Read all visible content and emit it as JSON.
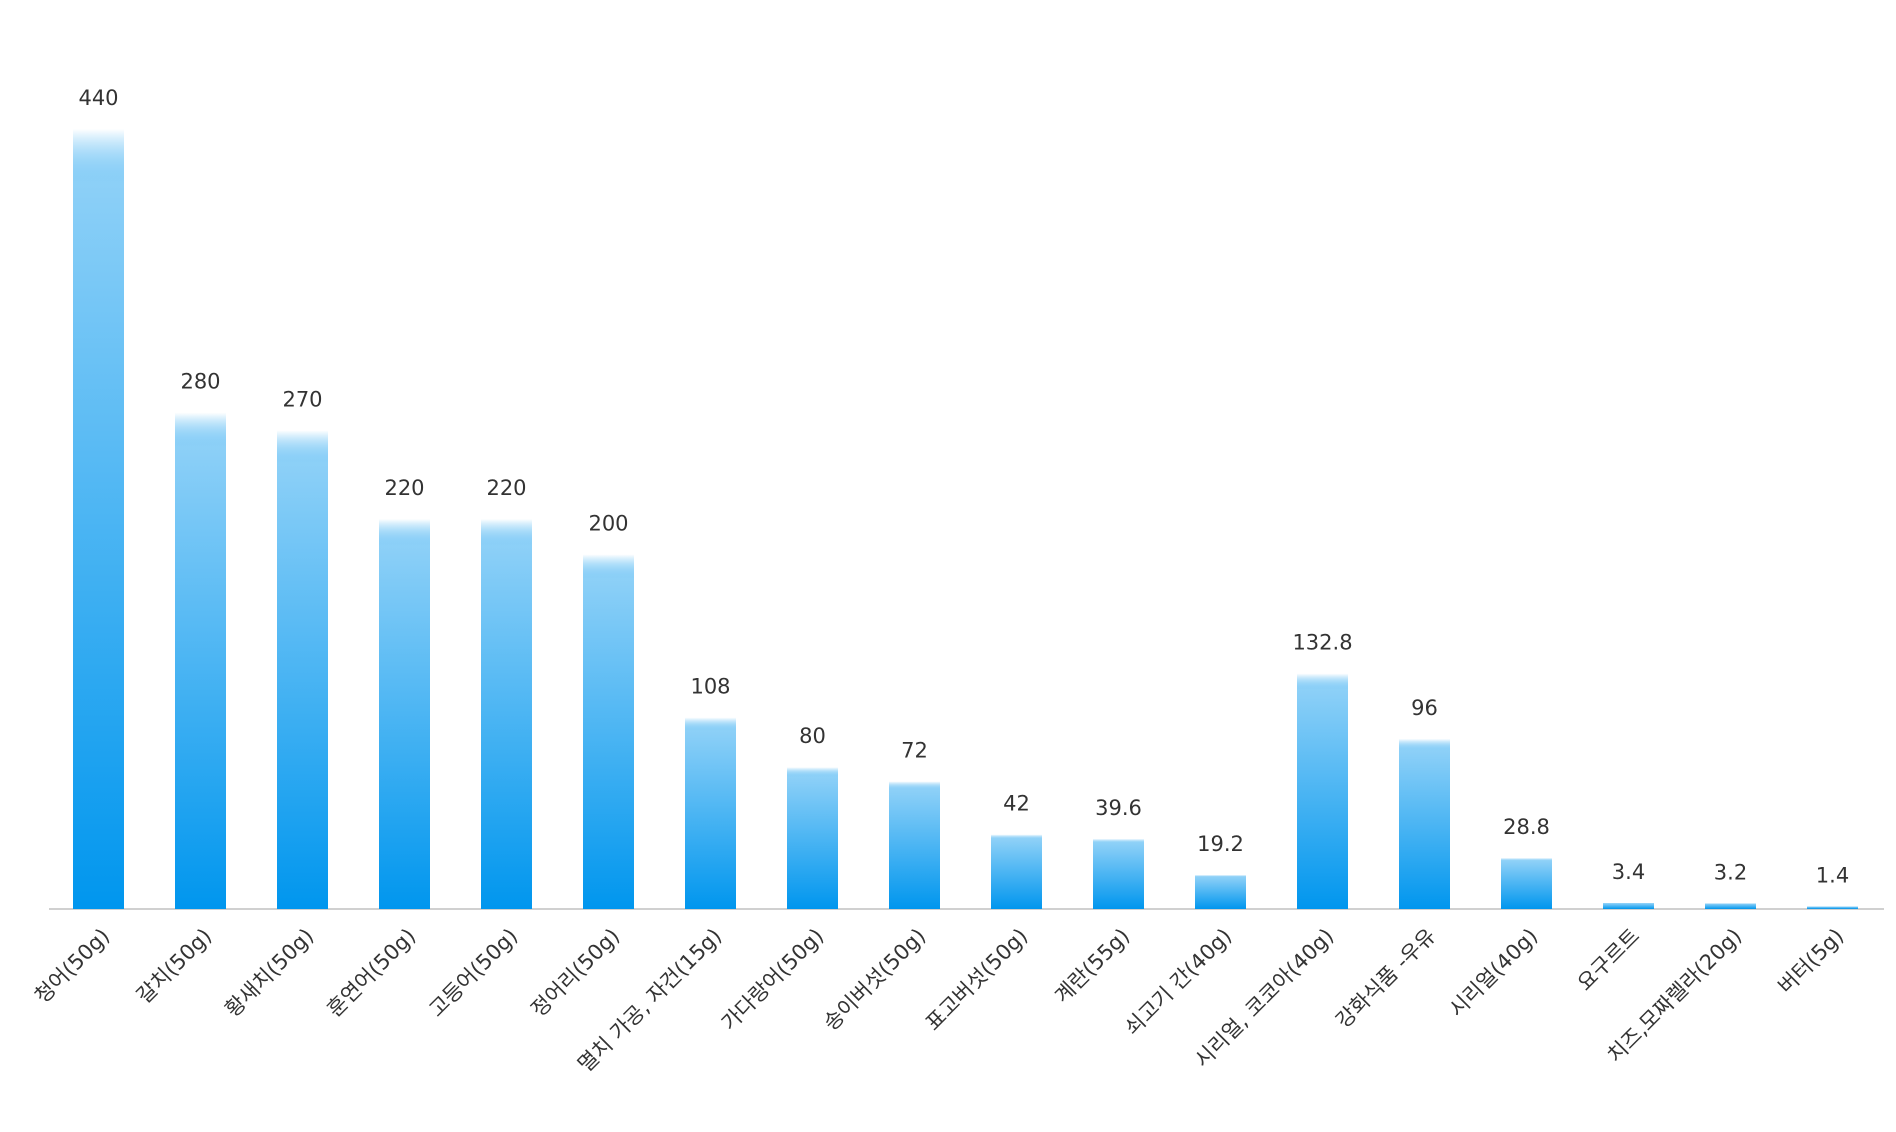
{
  "chart_data": {
    "type": "bar",
    "categories": [
      "청어(50g)",
      "갈치(50g)",
      "황새치(50g)",
      "훈연어(50g)",
      "고등어(50g)",
      "정어리(50g)",
      "멸치 가공, 자건(15g)",
      "가다랑어(50g)",
      "송이버섯(50g)",
      "표고버섯(50g)",
      "계란(55g)",
      "쇠고기 간(40g)",
      "시리얼, 코코아(40g)",
      "강화식품 -우유",
      "시리얼(40g)",
      "요구르트",
      "치즈,모짜렐라(20g)",
      "버터(5g)"
    ],
    "values": [
      440,
      280,
      270,
      220,
      220,
      200,
      108,
      80,
      72,
      42,
      39.6,
      19.2,
      132.8,
      96,
      28.8,
      3.4,
      3.2,
      1.4
    ],
    "color": "#0096ee",
    "ylim": [
      0,
      480
    ]
  }
}
